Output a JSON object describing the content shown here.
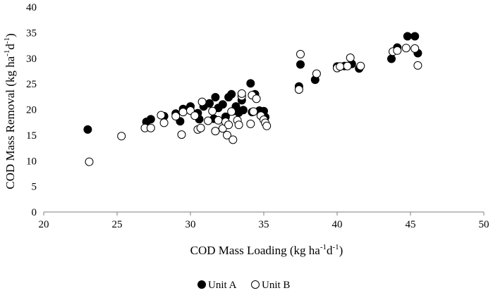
{
  "chart_data": {
    "type": "scatter",
    "title": "",
    "xlabel": "COD Mass Loading (kg ha",
    "xlabel_sup1": "-1",
    "xlabel_mid": "d",
    "xlabel_sup2": "-1",
    "xlabel_end": ")",
    "ylabel": "COD Mass Removal (kg ha",
    "ylabel_sup1": "-1",
    "ylabel_mid": "d",
    "ylabel_sup2": "-1",
    "ylabel_end": ")",
    "xlim": [
      20,
      50
    ],
    "ylim": [
      0,
      40
    ],
    "xticks": [
      20,
      25,
      30,
      35,
      40,
      45,
      50
    ],
    "yticks": [
      0,
      5,
      10,
      15,
      20,
      25,
      30,
      35,
      40
    ],
    "grid": false,
    "legend_position": "bottom-center",
    "series": [
      {
        "name": "Unit A",
        "marker": "filled-circle",
        "color": "#000000",
        "points": [
          [
            23.0,
            16.1
          ],
          [
            27.0,
            17.6
          ],
          [
            27.3,
            18.1
          ],
          [
            28.2,
            18.7
          ],
          [
            29.0,
            19.2
          ],
          [
            29.3,
            17.7
          ],
          [
            29.5,
            20.1
          ],
          [
            30.0,
            20.6
          ],
          [
            30.5,
            19.3
          ],
          [
            30.6,
            18.1
          ],
          [
            30.9,
            20.6
          ],
          [
            31.3,
            21.2
          ],
          [
            31.6,
            18.2
          ],
          [
            31.7,
            22.4
          ],
          [
            31.9,
            20.3
          ],
          [
            32.2,
            21.0
          ],
          [
            32.4,
            18.6
          ],
          [
            32.6,
            22.4
          ],
          [
            32.8,
            23.0
          ],
          [
            32.9,
            19.7
          ],
          [
            33.1,
            20.6
          ],
          [
            33.3,
            19.4
          ],
          [
            33.5,
            21.8
          ],
          [
            33.6,
            19.9
          ],
          [
            34.1,
            25.1
          ],
          [
            34.2,
            19.5
          ],
          [
            34.4,
            23.0
          ],
          [
            34.7,
            19.8
          ],
          [
            35.0,
            19.7
          ],
          [
            35.1,
            18.5
          ],
          [
            37.4,
            24.5
          ],
          [
            37.5,
            28.8
          ],
          [
            38.5,
            25.8
          ],
          [
            40.0,
            28.4
          ],
          [
            40.5,
            28.5
          ],
          [
            41.0,
            28.9
          ],
          [
            41.5,
            28.0
          ],
          [
            43.7,
            29.9
          ],
          [
            44.1,
            32.1
          ],
          [
            44.8,
            34.3
          ],
          [
            45.3,
            34.3
          ],
          [
            45.5,
            31.0
          ]
        ]
      },
      {
        "name": "Unit B",
        "marker": "open-circle",
        "color": "#000000",
        "points": [
          [
            23.1,
            9.8
          ],
          [
            25.3,
            14.8
          ],
          [
            26.9,
            16.4
          ],
          [
            27.3,
            16.4
          ],
          [
            28.0,
            18.9
          ],
          [
            28.2,
            17.4
          ],
          [
            29.0,
            18.7
          ],
          [
            29.4,
            15.1
          ],
          [
            29.5,
            19.5
          ],
          [
            30.0,
            19.8
          ],
          [
            30.3,
            18.8
          ],
          [
            30.5,
            16.1
          ],
          [
            30.7,
            16.4
          ],
          [
            30.8,
            21.5
          ],
          [
            31.2,
            17.8
          ],
          [
            31.5,
            19.7
          ],
          [
            31.7,
            15.8
          ],
          [
            31.9,
            17.9
          ],
          [
            32.2,
            16.3
          ],
          [
            32.4,
            17.6
          ],
          [
            32.5,
            15.0
          ],
          [
            32.6,
            17.0
          ],
          [
            32.8,
            19.6
          ],
          [
            32.9,
            14.1
          ],
          [
            33.2,
            17.9
          ],
          [
            33.3,
            17.0
          ],
          [
            33.5,
            22.6
          ],
          [
            33.5,
            23.1
          ],
          [
            34.1,
            17.2
          ],
          [
            34.2,
            22.8
          ],
          [
            34.3,
            19.6
          ],
          [
            34.5,
            22.1
          ],
          [
            34.8,
            18.8
          ],
          [
            35.0,
            18.0
          ],
          [
            35.1,
            17.4
          ],
          [
            35.2,
            16.8
          ],
          [
            37.4,
            23.9
          ],
          [
            37.5,
            30.8
          ],
          [
            38.6,
            27.0
          ],
          [
            40.0,
            28.1
          ],
          [
            40.2,
            28.4
          ],
          [
            40.7,
            28.5
          ],
          [
            40.9,
            30.1
          ],
          [
            41.6,
            28.5
          ],
          [
            43.8,
            31.3
          ],
          [
            44.1,
            31.5
          ],
          [
            44.7,
            32.0
          ],
          [
            45.3,
            31.9
          ],
          [
            45.5,
            28.6
          ]
        ]
      }
    ]
  }
}
